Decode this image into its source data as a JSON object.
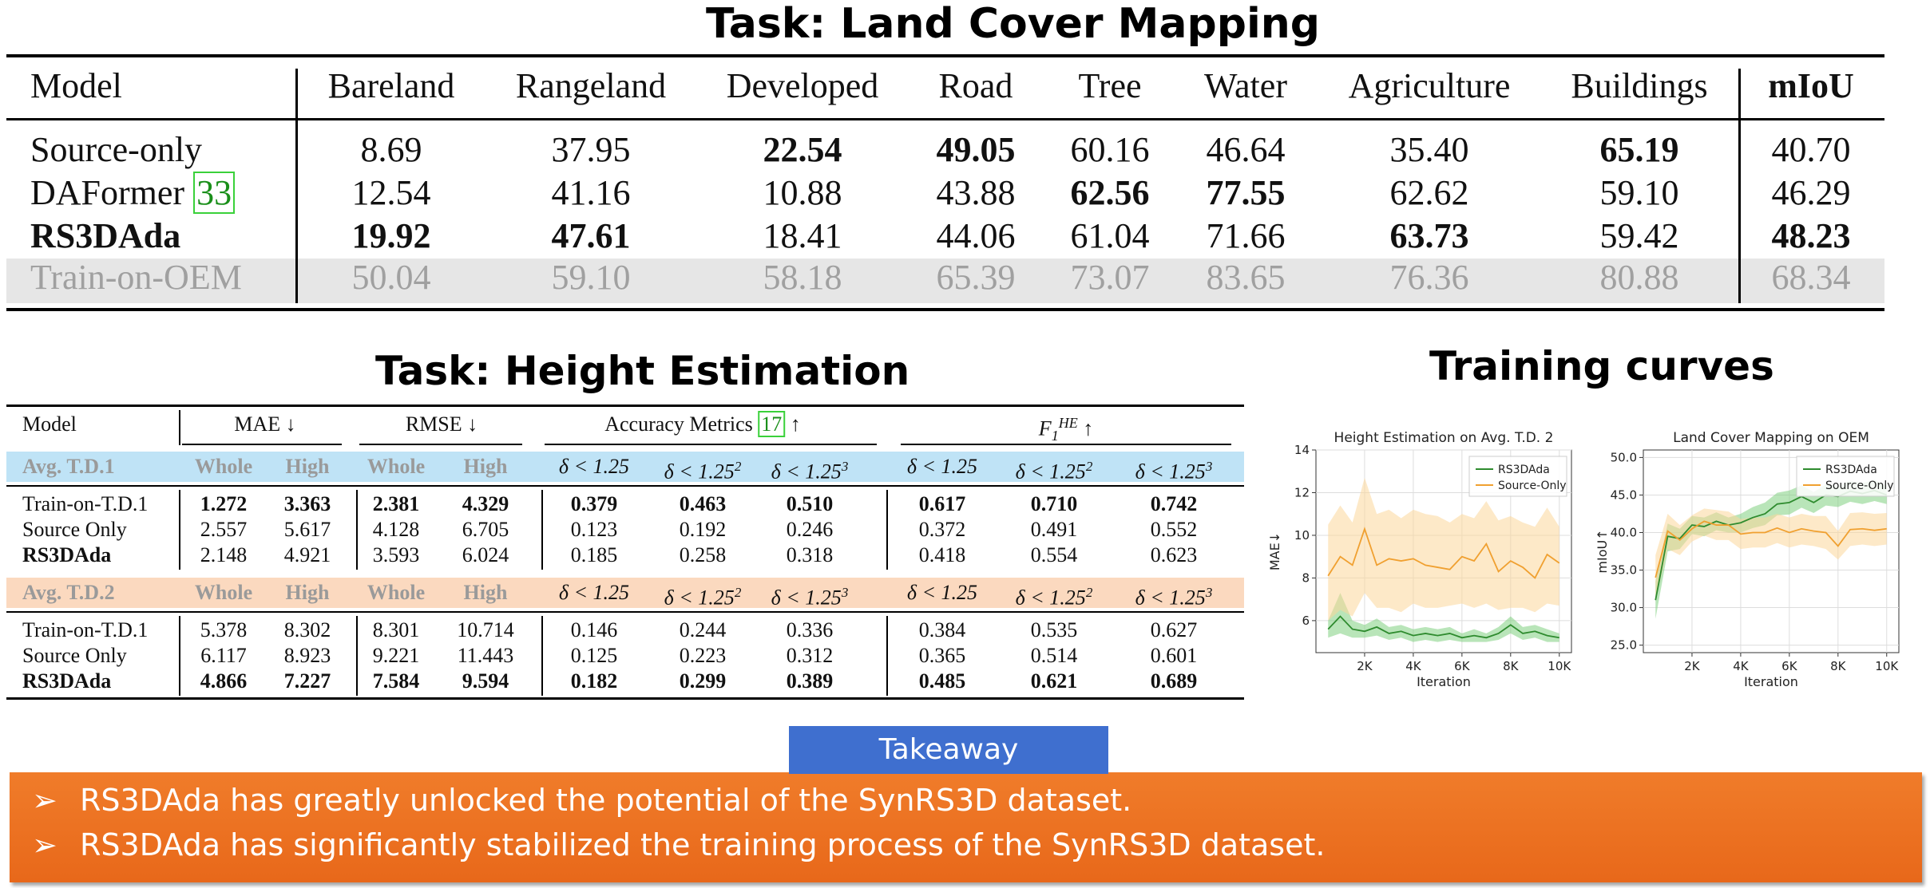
{
  "land_cover": {
    "title": "Task: Land Cover Mapping",
    "columns": [
      "Model",
      "Bareland",
      "Rangeland",
      "Developed",
      "Road",
      "Tree",
      "Water",
      "Agriculture",
      "Buildings",
      "mIoU"
    ],
    "rows": [
      {
        "model": "Source-only",
        "ref": "",
        "values": [
          "8.69",
          "37.95",
          "22.54",
          "49.05",
          "60.16",
          "46.64",
          "35.40",
          "65.19",
          "40.70"
        ],
        "bold": [
          false,
          false,
          true,
          true,
          false,
          false,
          false,
          true,
          false
        ],
        "model_bold": false,
        "muted": false
      },
      {
        "model": "DAFormer ",
        "ref": "33",
        "values": [
          "12.54",
          "41.16",
          "10.88",
          "43.88",
          "62.56",
          "77.55",
          "62.62",
          "59.10",
          "46.29"
        ],
        "bold": [
          false,
          false,
          false,
          false,
          true,
          true,
          false,
          false,
          false
        ],
        "model_bold": false,
        "muted": false
      },
      {
        "model": "RS3DAda",
        "ref": "",
        "values": [
          "19.92",
          "47.61",
          "18.41",
          "44.06",
          "61.04",
          "71.66",
          "63.73",
          "59.42",
          "48.23"
        ],
        "bold": [
          true,
          true,
          false,
          false,
          false,
          false,
          true,
          false,
          true
        ],
        "model_bold": true,
        "muted": false
      },
      {
        "model": "Train-on-OEM",
        "ref": "",
        "values": [
          "50.04",
          "59.10",
          "58.18",
          "65.39",
          "73.07",
          "83.65",
          "76.36",
          "80.88",
          "68.34"
        ],
        "bold": [
          false,
          false,
          false,
          false,
          false,
          false,
          false,
          false,
          false
        ],
        "model_bold": false,
        "muted": true
      }
    ]
  },
  "height": {
    "title": "Task: Height Estimation",
    "header": {
      "model": "Model",
      "mae": "MAE ↓",
      "rmse": "RMSE ↓",
      "acc_prefix": "Accuracy Metrics ",
      "acc_ref": "17",
      "acc_suffix": " ↑",
      "f_main": "F",
      "f_sub": "1",
      "f_sup": "HE",
      "f_suffix": " ↑"
    },
    "subheaders": [
      "Whole",
      "High",
      "Whole",
      "High",
      "δ < 1.25",
      "δ < 1.25",
      "δ < 1.25",
      "δ < 1.25",
      "δ < 1.25",
      "δ < 1.25"
    ],
    "subheader_sups": [
      "",
      "",
      "",
      "",
      "",
      "2",
      "3",
      "",
      "2",
      "3"
    ],
    "groups": [
      {
        "label": "Avg. T.D.1",
        "band_color": "#bfe3f6",
        "rows": [
          {
            "model": "Train-on-T.D.1",
            "model_bold": false,
            "values": [
              "1.272",
              "3.363",
              "2.381",
              "4.329",
              "0.379",
              "0.463",
              "0.510",
              "0.617",
              "0.710",
              "0.742"
            ],
            "bold": [
              true,
              true,
              true,
              true,
              true,
              true,
              true,
              true,
              true,
              true
            ]
          },
          {
            "model": "Source Only",
            "model_bold": false,
            "values": [
              "2.557",
              "5.617",
              "4.128",
              "6.705",
              "0.123",
              "0.192",
              "0.246",
              "0.372",
              "0.491",
              "0.552"
            ],
            "bold": [
              false,
              false,
              false,
              false,
              false,
              false,
              false,
              false,
              false,
              false
            ]
          },
          {
            "model": "RS3DAda",
            "model_bold": true,
            "values": [
              "2.148",
              "4.921",
              "3.593",
              "6.024",
              "0.185",
              "0.258",
              "0.318",
              "0.418",
              "0.554",
              "0.623"
            ],
            "bold": [
              false,
              false,
              false,
              false,
              false,
              false,
              false,
              false,
              false,
              false
            ]
          }
        ]
      },
      {
        "label": "Avg. T.D.2",
        "band_color": "#fbd9bf",
        "rows": [
          {
            "model": "Train-on-T.D.1",
            "model_bold": false,
            "values": [
              "5.378",
              "8.302",
              "8.301",
              "10.714",
              "0.146",
              "0.244",
              "0.336",
              "0.384",
              "0.535",
              "0.627"
            ],
            "bold": [
              false,
              false,
              false,
              false,
              false,
              false,
              false,
              false,
              false,
              false
            ]
          },
          {
            "model": "Source Only",
            "model_bold": false,
            "values": [
              "6.117",
              "8.923",
              "9.221",
              "11.443",
              "0.125",
              "0.223",
              "0.312",
              "0.365",
              "0.514",
              "0.601"
            ],
            "bold": [
              false,
              false,
              false,
              false,
              false,
              false,
              false,
              false,
              false,
              false
            ]
          },
          {
            "model": "RS3DAda",
            "model_bold": true,
            "values": [
              "4.866",
              "7.227",
              "7.584",
              "9.594",
              "0.182",
              "0.299",
              "0.389",
              "0.485",
              "0.621",
              "0.689"
            ],
            "bold": [
              true,
              true,
              true,
              true,
              true,
              true,
              true,
              true,
              true,
              true
            ]
          }
        ]
      }
    ]
  },
  "curves_title": "Training curves",
  "chart_data": [
    {
      "type": "line",
      "title": "Height Estimation on Avg. T.D. 2",
      "xlabel": "Iteration",
      "ylabel": "MAE↓",
      "xlim": [
        0,
        10500
      ],
      "ylim": [
        4.5,
        14
      ],
      "xticks": [
        2000,
        4000,
        6000,
        8000,
        10000
      ],
      "xtick_labels": [
        "2K",
        "4K",
        "6K",
        "8K",
        "10K"
      ],
      "yticks": [
        6,
        8,
        10,
        12,
        14
      ],
      "ytick_labels": [
        "6",
        "8",
        "10",
        "12",
        "14"
      ],
      "grid": true,
      "legend": "top-right",
      "x": [
        500,
        1000,
        1500,
        2000,
        2500,
        3000,
        3500,
        4000,
        4500,
        5000,
        5500,
        6000,
        6500,
        7000,
        7500,
        8000,
        8500,
        9000,
        9500,
        10000
      ],
      "series": [
        {
          "name": "RS3DAda",
          "color": "#2e8b2e",
          "band_color": "#7fcf7f",
          "values": [
            5.6,
            6.2,
            5.6,
            5.5,
            5.7,
            5.4,
            5.5,
            5.3,
            5.4,
            5.3,
            5.4,
            5.2,
            5.3,
            5.2,
            5.4,
            5.8,
            5.4,
            5.5,
            5.3,
            5.2
          ],
          "lower": [
            5.2,
            5.4,
            5.2,
            5.2,
            5.3,
            5.1,
            5.2,
            5.0,
            5.1,
            5.0,
            5.1,
            5.0,
            5.0,
            5.0,
            5.1,
            5.4,
            5.1,
            5.2,
            5.0,
            5.0
          ],
          "upper": [
            6.0,
            7.3,
            6.0,
            5.8,
            6.1,
            5.7,
            5.8,
            5.6,
            5.7,
            5.6,
            5.7,
            5.4,
            5.6,
            5.4,
            5.7,
            6.2,
            5.7,
            5.8,
            5.6,
            5.4
          ]
        },
        {
          "name": "Source-Only",
          "color": "#f0a030",
          "band_color": "#fbd79a",
          "values": [
            8.1,
            9.0,
            8.6,
            10.3,
            8.6,
            8.9,
            8.8,
            8.9,
            8.6,
            8.5,
            8.4,
            9.0,
            8.8,
            9.6,
            8.3,
            8.8,
            8.5,
            8.0,
            9.1,
            8.7
          ],
          "lower": [
            6.0,
            6.5,
            6.2,
            7.3,
            6.6,
            6.6,
            6.4,
            6.8,
            6.6,
            6.6,
            6.7,
            6.8,
            6.6,
            6.8,
            6.5,
            6.6,
            6.6,
            6.4,
            6.8,
            6.7
          ],
          "upper": [
            10.5,
            11.4,
            10.6,
            12.7,
            11.0,
            11.2,
            10.8,
            11.2,
            11.0,
            10.9,
            10.6,
            11.0,
            10.8,
            11.6,
            10.7,
            10.9,
            10.6,
            10.4,
            11.3,
            10.4
          ]
        }
      ]
    },
    {
      "type": "line",
      "title": "Land Cover Mapping on OEM",
      "xlabel": "Iteration",
      "ylabel": "mIoU↑",
      "xlim": [
        0,
        10500
      ],
      "ylim": [
        24,
        51
      ],
      "xticks": [
        2000,
        4000,
        6000,
        8000,
        10000
      ],
      "xtick_labels": [
        "2K",
        "4K",
        "6K",
        "8K",
        "10K"
      ],
      "yticks": [
        25,
        30,
        35,
        40,
        45,
        50
      ],
      "ytick_labels": [
        "25.0",
        "30.0",
        "35.0",
        "40.0",
        "45.0",
        "50.0"
      ],
      "grid": true,
      "legend": "top-right",
      "x": [
        500,
        1000,
        1500,
        2000,
        2500,
        3000,
        3500,
        4000,
        4500,
        5000,
        5500,
        6000,
        6500,
        7000,
        7500,
        8000,
        8500,
        9000,
        9500,
        10000
      ],
      "series": [
        {
          "name": "RS3DAda",
          "color": "#2e8b2e",
          "band_color": "#7fcf7f",
          "values": [
            31.0,
            39.5,
            39.2,
            41.0,
            40.8,
            41.5,
            41.0,
            41.3,
            42.0,
            42.5,
            43.8,
            44.0,
            44.8,
            44.0,
            45.0,
            44.8,
            45.5,
            45.2,
            45.6,
            45.0
          ],
          "lower": [
            28.5,
            37.5,
            37.8,
            39.8,
            39.5,
            40.3,
            40.0,
            40.0,
            40.6,
            41.0,
            42.3,
            42.4,
            43.3,
            42.6,
            43.6,
            43.4,
            44.1,
            43.8,
            44.2,
            43.8
          ],
          "upper": [
            33.5,
            41.2,
            40.5,
            42.2,
            42.0,
            42.7,
            42.0,
            42.5,
            43.4,
            44.0,
            45.3,
            45.6,
            46.3,
            45.4,
            46.4,
            46.2,
            46.9,
            46.6,
            47.0,
            46.2
          ]
        },
        {
          "name": "Source-Only",
          "color": "#f0a030",
          "band_color": "#fbd79a",
          "values": [
            34.0,
            40.2,
            39.0,
            40.5,
            41.5,
            41.0,
            41.0,
            39.8,
            40.0,
            40.0,
            40.6,
            40.0,
            40.5,
            40.2,
            40.0,
            38.2,
            40.4,
            40.5,
            40.3,
            40.5
          ],
          "lower": [
            31.0,
            37.8,
            37.0,
            38.8,
            39.6,
            39.0,
            39.0,
            37.8,
            38.0,
            38.0,
            38.6,
            38.0,
            38.4,
            38.2,
            37.8,
            36.4,
            38.2,
            38.4,
            38.2,
            38.4
          ],
          "upper": [
            37.0,
            42.5,
            41.0,
            42.3,
            43.2,
            43.0,
            42.8,
            41.8,
            42.0,
            42.0,
            42.5,
            42.0,
            42.5,
            42.2,
            42.2,
            40.2,
            42.6,
            42.7,
            42.5,
            42.6
          ]
        }
      ]
    }
  ],
  "takeaway": {
    "tab_label": "Takeaway",
    "bullet_glyph": "➢",
    "points": [
      "RS3DAda has greatly unlocked the potential of the SynRS3D dataset.",
      "RS3DAda has significantly stabilized the training process of the SynRS3D dataset."
    ]
  }
}
